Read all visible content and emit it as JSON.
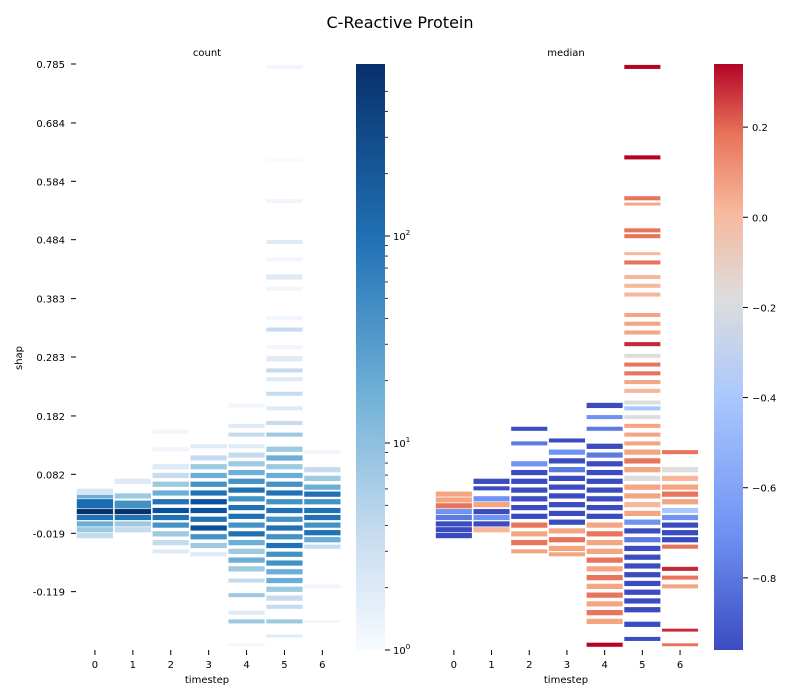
{
  "title": "C-Reactive Protein",
  "colors": {
    "count_low": "#f7fbff",
    "count_high": "#08306b",
    "median_low": "#3b4cc0",
    "median_mid": "#dddddd",
    "median_high": "#b40426"
  },
  "chart_data": [
    {
      "type": "heatmap",
      "title": "count",
      "xlabel": "timestep",
      "ylabel": "shap",
      "x": [
        0,
        1,
        2,
        3,
        4,
        5,
        6
      ],
      "y_ticks": [
        "0.785",
        "0.684",
        "0.584",
        "0.484",
        "0.383",
        "0.283",
        "0.182",
        "0.082",
        "-0.019",
        "-0.119"
      ],
      "ylim": [
        -0.219,
        0.785
      ],
      "colorbar": {
        "scale": "log",
        "ticks": [
          "10^0",
          "10^1",
          "10^2"
        ],
        "range": [
          1,
          600
        ],
        "colormap": "Blues"
      }
    },
    {
      "type": "heatmap",
      "title": "median",
      "xlabel": "timestep",
      "x": [
        0,
        1,
        2,
        3,
        4,
        5,
        6
      ],
      "ylim": [
        -0.219,
        0.785
      ],
      "colorbar": {
        "scale": "linear",
        "ticks": [
          "0.2",
          "0.0",
          "−0.2",
          "−0.4",
          "−0.6",
          "−0.8"
        ],
        "range": [
          -0.96,
          0.34
        ],
        "colormap": "coolwarm"
      }
    }
  ]
}
